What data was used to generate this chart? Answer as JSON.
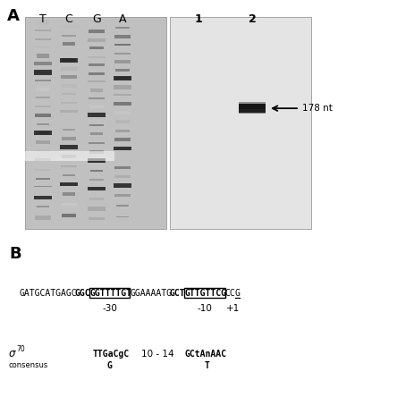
{
  "panel_a_label": "A",
  "panel_b_label": "B",
  "gel_lanes_top": [
    "T",
    "C",
    "G",
    "A",
    "1",
    "2"
  ],
  "arrow_label": "178 nt",
  "seq_segments": [
    {
      "text": "GATGCATGAGC",
      "bold": false,
      "boxed": false,
      "underline": false
    },
    {
      "text": "GGC",
      "bold": true,
      "boxed": false,
      "underline": false
    },
    {
      "text": "GGTTTTGT",
      "bold": true,
      "boxed": true,
      "underline": false
    },
    {
      "text": "GGAAAATG",
      "bold": false,
      "boxed": false,
      "underline": false
    },
    {
      "text": "GCT",
      "bold": true,
      "boxed": false,
      "underline": false
    },
    {
      "text": "GTTGTTCG",
      "bold": true,
      "boxed": true,
      "underline": false
    },
    {
      "text": "CC",
      "bold": false,
      "boxed": false,
      "underline": false
    },
    {
      "text": "G",
      "bold": false,
      "boxed": false,
      "underline": true
    }
  ],
  "pos_minus30": "-30",
  "pos_minus10": "-10",
  "pos_plus1": "+1",
  "consensus_sigma": "σ",
  "consensus_sup": "70",
  "consensus_sub_label": "consensus",
  "consensus_box1": "TTGaCgC",
  "consensus_sub1": "G",
  "consensus_spacer": "10 - 14",
  "consensus_box2": "GCtAnAAC",
  "consensus_sub2": "T",
  "bg_color": "#ffffff",
  "text_color": "#000000"
}
